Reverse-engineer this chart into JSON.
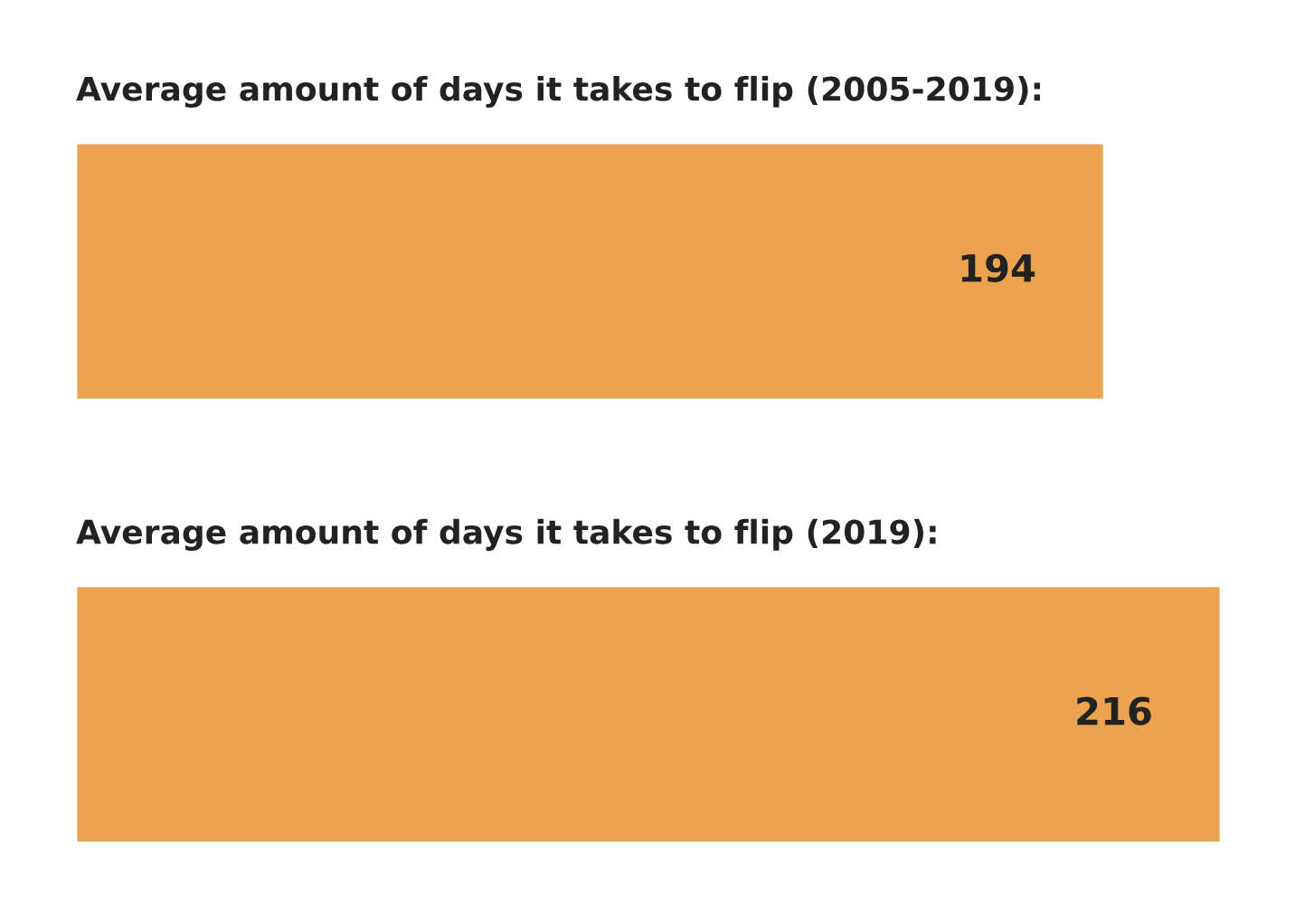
{
  "chart_data": {
    "type": "bar",
    "orientation": "horizontal",
    "categories": [
      null,
      null
    ],
    "annotations": [
      "Average amount of days it takes to flip (2005-2019):",
      "Average amount of days it takes to flip (2019):"
    ],
    "values": [
      194,
      216
    ],
    "color": "#eba350",
    "data_labels": true
  }
}
